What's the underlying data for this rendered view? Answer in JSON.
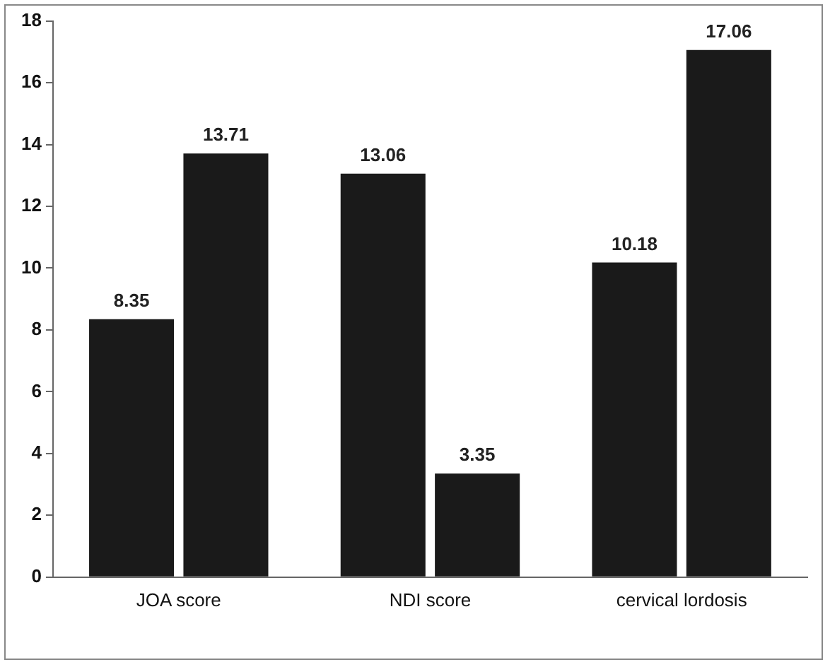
{
  "chart_data": {
    "type": "bar",
    "categories": [
      "JOA score",
      "NDI score",
      "cervical lordosis"
    ],
    "series": [
      {
        "color": "#1a1a1a",
        "values": [
          8.35,
          13.06,
          10.18
        ]
      },
      {
        "color": "#1a1a1a",
        "values": [
          13.71,
          3.35,
          17.06
        ]
      }
    ],
    "ylim": [
      0,
      18
    ],
    "yticks": [
      0,
      2,
      4,
      6,
      8,
      10,
      12,
      14,
      16,
      18
    ],
    "grid": false,
    "legend": false,
    "data_labels": true
  }
}
